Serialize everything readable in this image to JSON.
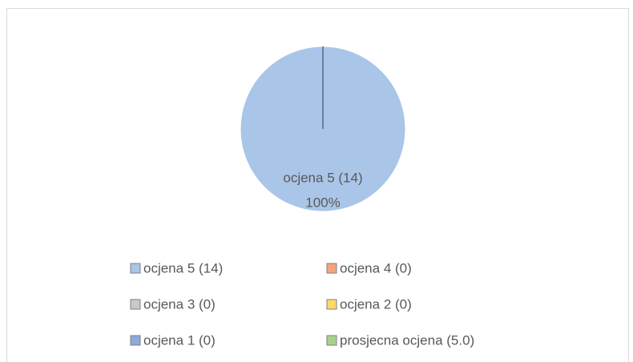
{
  "chart_data": {
    "type": "pie",
    "categories": [
      "ocjena 5 (14)",
      "ocjena 4 (0)",
      "ocjena 3 (0)",
      "ocjena 2 (0)",
      "ocjena 1 (0)",
      "prosjecna ocjena (5.0)"
    ],
    "values": [
      100,
      0,
      0,
      0,
      0,
      0
    ],
    "value_labels": [
      "100%",
      null,
      null,
      null,
      null,
      null
    ],
    "colors": [
      "#a9c5e8",
      "#f4a47f",
      "#c9c9c9",
      "#ffd966",
      "#8ea9db",
      "#a9d18e"
    ],
    "legend": "bottom"
  }
}
